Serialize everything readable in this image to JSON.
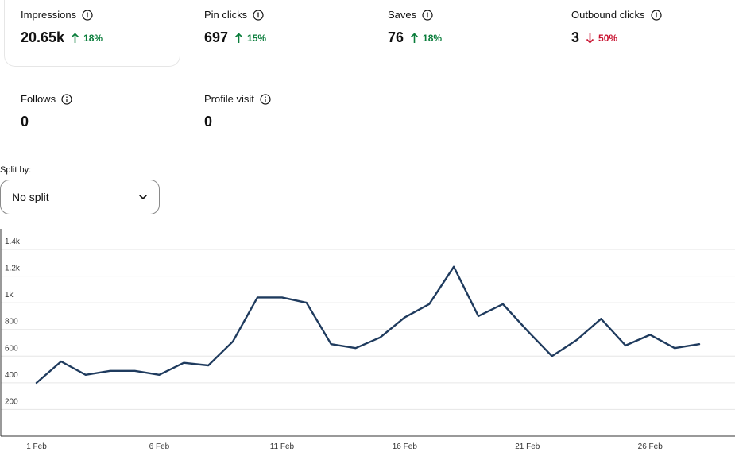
{
  "metrics": [
    {
      "label": "Impressions",
      "value": "20.65k",
      "change": "18%",
      "direction": "up"
    },
    {
      "label": "Pin clicks",
      "value": "697",
      "change": "15%",
      "direction": "up"
    },
    {
      "label": "Saves",
      "value": "76",
      "change": "18%",
      "direction": "up"
    },
    {
      "label": "Outbound clicks",
      "value": "3",
      "change": "50%",
      "direction": "down"
    },
    {
      "label": "Follows",
      "value": "0"
    },
    {
      "label": "Profile visit",
      "value": "0"
    }
  ],
  "icons": {
    "info": "info-icon",
    "up": "arrow-up-icon",
    "down": "arrow-down-icon",
    "dropdown": "chevron-down-icon"
  },
  "colors": {
    "up": "#0a7d3b",
    "down": "#c8102e",
    "line": "#1f3b5e",
    "grid": "#e6e6e6"
  },
  "split": {
    "label": "Split by:",
    "selected": "No split"
  },
  "chart_data": {
    "type": "line",
    "x": [
      1,
      2,
      3,
      4,
      5,
      6,
      7,
      8,
      9,
      10,
      11,
      12,
      13,
      14,
      15,
      16,
      17,
      18,
      19,
      20,
      21,
      22,
      23,
      24,
      25,
      26,
      27,
      28
    ],
    "x_tick_labels": [
      "1 Feb",
      "6 Feb",
      "11 Feb",
      "16 Feb",
      "21 Feb",
      "26 Feb"
    ],
    "x_tick_positions": [
      1,
      6,
      11,
      16,
      21,
      26
    ],
    "series": [
      {
        "values": [
          400,
          560,
          460,
          490,
          490,
          460,
          550,
          530,
          710,
          1040,
          1040,
          1000,
          690,
          660,
          740,
          890,
          990,
          1270,
          900,
          990,
          790,
          600,
          720,
          880,
          680,
          760,
          660,
          690
        ]
      }
    ],
    "y_ticks": [
      200,
      400,
      600,
      800,
      1000,
      1200,
      1400
    ],
    "y_tick_labels": [
      "200",
      "400",
      "600",
      "800",
      "1k",
      "1.2k",
      "1.4k"
    ],
    "ylim": [
      0,
      1400
    ],
    "grid": true
  }
}
